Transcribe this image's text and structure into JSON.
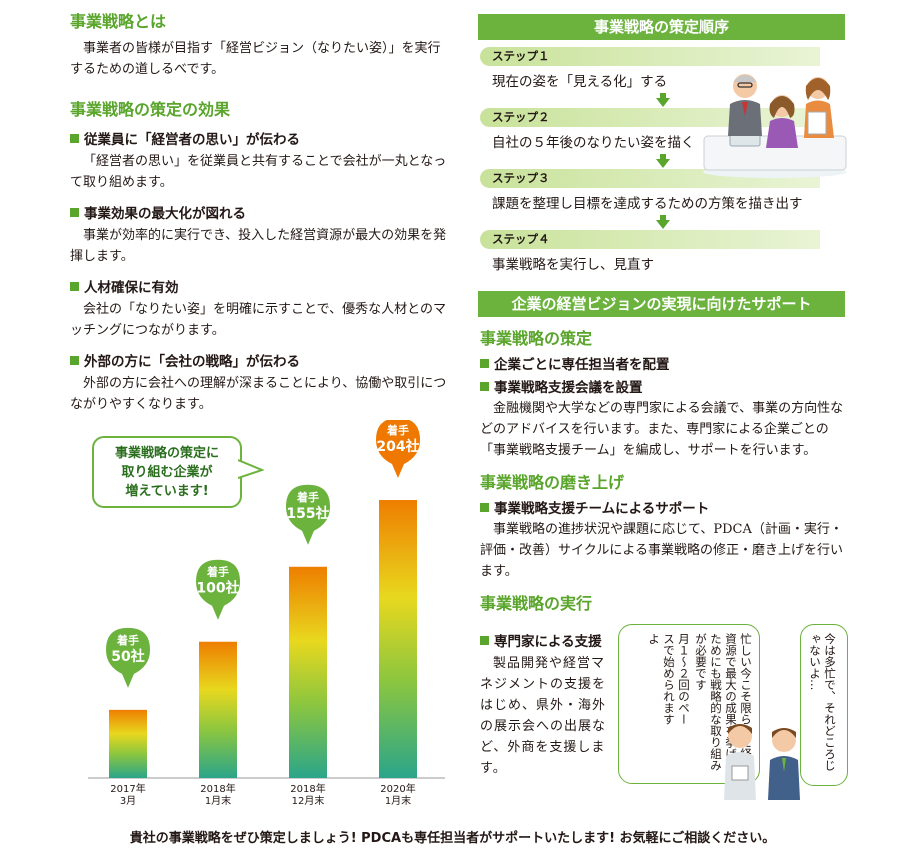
{
  "left": {
    "section1": {
      "title": "事業戦略とは",
      "body": "事業者の皆様が目指す「経営ビジョン（なりたい姿）」を実行するための道しるべです。"
    },
    "section2": {
      "title": "事業戦略の策定の効果",
      "items": [
        {
          "heading": "従業員に「経営者の思い」が伝わる",
          "body": "「経営者の思い」を従業員と共有することで会社が一丸となって取り組めます。"
        },
        {
          "heading": "事業効果の最大化が図れる",
          "body": "事業が効率的に実行でき、投入した経営資源が最大の効果を発揮します。"
        },
        {
          "heading": "人材確保に有効",
          "body": "会社の「なりたい姿」を明確に示すことで、優秀な人材とのマッチングにつながります。"
        },
        {
          "heading": "外部の方に「会社の戦略」が伝わる",
          "body": "外部の方に会社への理解が深まることにより、協働や取引につながりやすくなります。"
        }
      ]
    }
  },
  "callout": {
    "line1": "事業戦略の策定に",
    "line2": "取り組む企業が",
    "line3": "増えています!"
  },
  "chart_data": {
    "type": "bar",
    "categories": [
      "2017年3月",
      "2018年1月末",
      "2018年12月末",
      "2020年1月末"
    ],
    "category_lines": [
      [
        "2017年",
        "3月"
      ],
      [
        "2018年",
        "1月末"
      ],
      [
        "2018年",
        "12月末"
      ],
      [
        "2020年",
        "1月末"
      ]
    ],
    "values": [
      50,
      100,
      155,
      204
    ],
    "pin_top": "着手",
    "pin_labels": [
      "50社",
      "100社",
      "155社",
      "204社"
    ],
    "pin_colors": [
      "#6cb33e",
      "#6cb33e",
      "#6cb33e",
      "#ee7800"
    ],
    "ylim": [
      0,
      204
    ]
  },
  "right": {
    "order": {
      "title": "事業戦略の策定順序",
      "steps": [
        {
          "tag": "ステップ１",
          "text": "現在の姿を「見える化」する"
        },
        {
          "tag": "ステップ２",
          "text": "自社の５年後のなりたい姿を描く"
        },
        {
          "tag": "ステップ３",
          "text": "課題を整理し目標を達成するための方策を描き出す"
        },
        {
          "tag": "ステップ４",
          "text": "事業戦略を実行し、見直す"
        }
      ]
    },
    "support": {
      "title": "企業の経営ビジョンの実現に向けたサポート",
      "s1": {
        "title": "事業戦略の策定",
        "h1": "企業ごとに専任担当者を配置",
        "h2": "事業戦略支援会議を設置",
        "body": "金融機関や大学などの専門家による会議で、事業の方向性などのアドバイスを行います。また、専門家による企業ごとの「事業戦略支援チーム」を編成し、サポートを行います。"
      },
      "s2": {
        "title": "事業戦略の磨き上げ",
        "h1": "事業戦略支援チームによるサポート",
        "body": "事業戦略の進捗状況や課題に応じて、PDCA（計画・実行・評価・改善）サイクルによる事業戦略の修正・磨き上げを行います。"
      },
      "s3": {
        "title": "事業戦略の実行",
        "h1": "専門家による支援",
        "body": "製品開発や経営マネジメントの支援をはじめ、県外・海外の展示会への出展など、外商を支援します。"
      }
    },
    "speech": {
      "a": "今は多忙で、それどころじゃないよ…",
      "b": "忙しい今こそ限られた経営資源で最大の成果を挙げるためにも戦略的な取り組みが必要です",
      "c": "月１～２回のペースで始められますよ"
    }
  },
  "footer": "貴社の事業戦略をぜひ策定しましょう! PDCAも専任担当者がサポートいたします! お気軽にご相談ください。"
}
